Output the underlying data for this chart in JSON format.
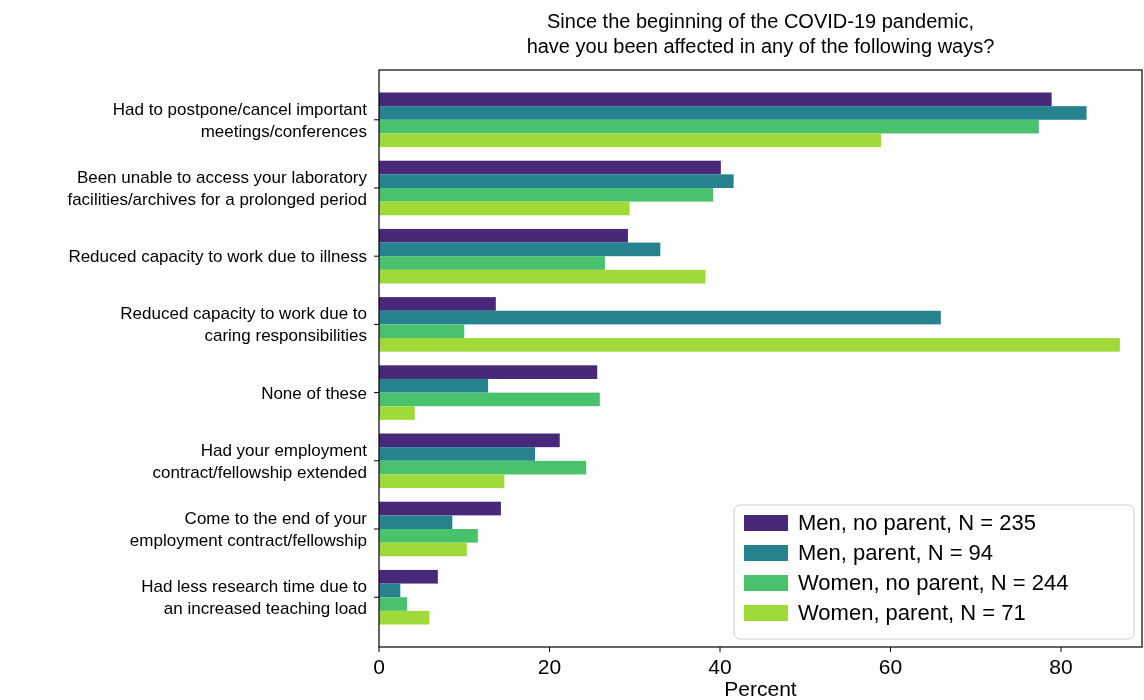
{
  "chart_data": {
    "type": "bar",
    "orientation": "horizontal",
    "title": "Since the beginning of the COVID-19 pandemic,\nhave you been affected in any of the following ways?",
    "xlabel": "Percent",
    "categories": [
      "Had to postpone/cancel important\nmeetings/conferences",
      "Been unable to access your laboratory\nfacilities/archives for a prolonged period",
      "Reduced capacity to work due to illness",
      "Reduced capacity to work due to\ncaring responsibilities",
      "None of these",
      "Had your employment\ncontract/fellowship extended",
      "Come to the end of your\nemployment contract/fellowship",
      "Had less research time due to\nan increased teaching load"
    ],
    "series": [
      {
        "name": "Men, no parent, N = 235",
        "color": "#482878",
        "values": [
          78.9,
          40.1,
          29.2,
          13.7,
          25.6,
          21.2,
          14.3,
          6.9
        ]
      },
      {
        "name": "Men, parent, N = 94",
        "color": "#26828e",
        "values": [
          83.0,
          41.6,
          33.0,
          65.9,
          12.8,
          18.3,
          8.6,
          2.5
        ]
      },
      {
        "name": "Women, no parent, N = 244",
        "color": "#4ac16d",
        "values": [
          77.4,
          39.2,
          26.5,
          10.0,
          25.9,
          24.3,
          11.6,
          3.3
        ]
      },
      {
        "name": "Women, parent, N = 71",
        "color": "#a0da39",
        "values": [
          58.9,
          29.4,
          38.3,
          86.9,
          4.2,
          14.7,
          10.3,
          5.9
        ]
      }
    ],
    "xlim": [
      0,
      89.5
    ],
    "xticks": [
      0,
      20,
      40,
      60,
      80
    ],
    "legend": "bottom right",
    "grid": false
  }
}
